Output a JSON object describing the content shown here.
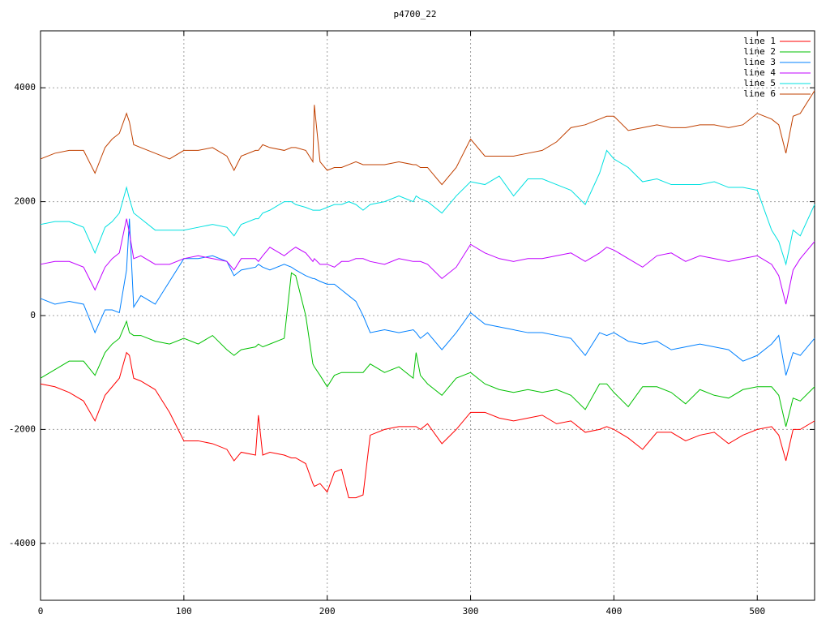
{
  "chart_data": {
    "type": "line",
    "title": "p4700_22",
    "x": [
      0,
      10,
      20,
      30,
      38,
      45,
      50,
      55,
      60,
      62,
      65,
      70,
      80,
      90,
      100,
      110,
      120,
      130,
      135,
      140,
      150,
      152,
      155,
      160,
      170,
      175,
      178,
      185,
      190,
      191,
      195,
      200,
      205,
      210,
      215,
      220,
      225,
      230,
      240,
      250,
      260,
      262,
      265,
      270,
      280,
      290,
      300,
      310,
      320,
      330,
      340,
      350,
      360,
      370,
      380,
      390,
      395,
      400,
      410,
      420,
      430,
      440,
      450,
      460,
      470,
      480,
      490,
      500,
      510,
      515,
      520,
      525,
      530,
      540
    ],
    "series": [
      {
        "name": "line 1",
        "color": "#ff0000",
        "values": [
          -1200,
          -1250,
          -1350,
          -1500,
          -1850,
          -1400,
          -1250,
          -1100,
          -650,
          -700,
          -1100,
          -1150,
          -1300,
          -1700,
          -2200,
          -2200,
          -2250,
          -2350,
          -2550,
          -2400,
          -2450,
          -1750,
          -2450,
          -2400,
          -2450,
          -2500,
          -2500,
          -2600,
          -2950,
          -3000,
          -2950,
          -3100,
          -2750,
          -2700,
          -3200,
          -3200,
          -3150,
          -2100,
          -2000,
          -1950,
          -1950,
          -1950,
          -2000,
          -1900,
          -2250,
          -2000,
          -1700,
          -1700,
          -1800,
          -1850,
          -1800,
          -1750,
          -1900,
          -1850,
          -2050,
          -2000,
          -1950,
          -2000,
          -2150,
          -2350,
          -2050,
          -2050,
          -2200,
          -2100,
          -2050,
          -2250,
          -2100,
          -2000,
          -1950,
          -2100,
          -2550,
          -2000,
          -2000,
          -1850
        ]
      },
      {
        "name": "line 2",
        "color": "#00c000",
        "values": [
          -1100,
          -950,
          -800,
          -800,
          -1050,
          -650,
          -500,
          -400,
          -100,
          -300,
          -350,
          -350,
          -450,
          -500,
          -400,
          -500,
          -350,
          -600,
          -700,
          -600,
          -550,
          -500,
          -550,
          -500,
          -400,
          750,
          700,
          0,
          -850,
          -900,
          -1050,
          -1250,
          -1050,
          -1000,
          -1000,
          -1000,
          -1000,
          -850,
          -1000,
          -900,
          -1100,
          -650,
          -1050,
          -1200,
          -1400,
          -1100,
          -1000,
          -1200,
          -1300,
          -1350,
          -1300,
          -1350,
          -1300,
          -1400,
          -1650,
          -1200,
          -1200,
          -1350,
          -1600,
          -1250,
          -1250,
          -1350,
          -1550,
          -1300,
          -1400,
          -1450,
          -1300,
          -1250,
          -1250,
          -1400,
          -1950,
          -1450,
          -1500,
          -1250
        ]
      },
      {
        "name": "line 3",
        "color": "#0080ff",
        "values": [
          300,
          200,
          250,
          200,
          -300,
          100,
          100,
          50,
          800,
          1700,
          150,
          350,
          200,
          600,
          1000,
          1000,
          1050,
          950,
          700,
          800,
          850,
          900,
          850,
          800,
          900,
          850,
          800,
          700,
          650,
          650,
          600,
          550,
          550,
          450,
          350,
          250,
          0,
          -300,
          -250,
          -300,
          -250,
          -300,
          -400,
          -300,
          -600,
          -300,
          50,
          -150,
          -200,
          -250,
          -300,
          -300,
          -350,
          -400,
          -700,
          -300,
          -350,
          -300,
          -450,
          -500,
          -450,
          -600,
          -550,
          -500,
          -550,
          -600,
          -800,
          -700,
          -500,
          -350,
          -1050,
          -650,
          -700,
          -400
        ]
      },
      {
        "name": "line 4",
        "color": "#c000ff",
        "values": [
          900,
          950,
          950,
          850,
          450,
          850,
          1000,
          1100,
          1700,
          1450,
          1000,
          1050,
          900,
          900,
          1000,
          1050,
          1000,
          950,
          800,
          1000,
          1000,
          950,
          1050,
          1200,
          1050,
          1150,
          1200,
          1100,
          950,
          1000,
          900,
          900,
          850,
          950,
          950,
          1000,
          1000,
          950,
          900,
          1000,
          950,
          950,
          950,
          900,
          650,
          850,
          1250,
          1100,
          1000,
          950,
          1000,
          1000,
          1050,
          1100,
          950,
          1100,
          1200,
          1150,
          1000,
          850,
          1050,
          1100,
          950,
          1050,
          1000,
          950,
          1000,
          1050,
          900,
          700,
          200,
          800,
          1000,
          1300
        ]
      },
      {
        "name": "line 5",
        "color": "#00e0e0",
        "values": [
          1600,
          1650,
          1650,
          1550,
          1100,
          1550,
          1650,
          1800,
          2250,
          2050,
          1800,
          1700,
          1500,
          1500,
          1500,
          1550,
          1600,
          1550,
          1400,
          1600,
          1700,
          1700,
          1800,
          1850,
          2000,
          2000,
          1950,
          1900,
          1850,
          1850,
          1850,
          1900,
          1950,
          1950,
          2000,
          1950,
          1850,
          1950,
          2000,
          2100,
          2000,
          2100,
          2050,
          2000,
          1800,
          2100,
          2350,
          2300,
          2450,
          2100,
          2400,
          2400,
          2300,
          2200,
          1950,
          2500,
          2900,
          2750,
          2600,
          2350,
          2400,
          2300,
          2300,
          2300,
          2350,
          2250,
          2250,
          2200,
          1500,
          1300,
          900,
          1500,
          1400,
          1950
        ]
      },
      {
        "name": "line 6",
        "color": "#c04000",
        "values": [
          2750,
          2850,
          2900,
          2900,
          2500,
          2950,
          3100,
          3200,
          3550,
          3400,
          3000,
          2950,
          2850,
          2750,
          2900,
          2900,
          2950,
          2800,
          2550,
          2800,
          2900,
          2900,
          3000,
          2950,
          2900,
          2950,
          2950,
          2900,
          2700,
          3700,
          2700,
          2550,
          2600,
          2600,
          2650,
          2700,
          2650,
          2650,
          2650,
          2700,
          2650,
          2650,
          2600,
          2600,
          2300,
          2600,
          3100,
          2800,
          2800,
          2800,
          2850,
          2900,
          3050,
          3300,
          3350,
          3450,
          3500,
          3500,
          3250,
          3300,
          3350,
          3300,
          3300,
          3350,
          3350,
          3300,
          3350,
          3550,
          3450,
          3350,
          2850,
          3500,
          3550,
          3950
        ]
      }
    ],
    "xlim": [
      0,
      540
    ],
    "ylim": [
      -5000,
      5000
    ],
    "xticks": [
      0,
      100,
      200,
      300,
      400,
      500
    ],
    "yticks": [
      -4000,
      -2000,
      0,
      2000,
      4000
    ],
    "grid": true,
    "legend": "top-right"
  }
}
